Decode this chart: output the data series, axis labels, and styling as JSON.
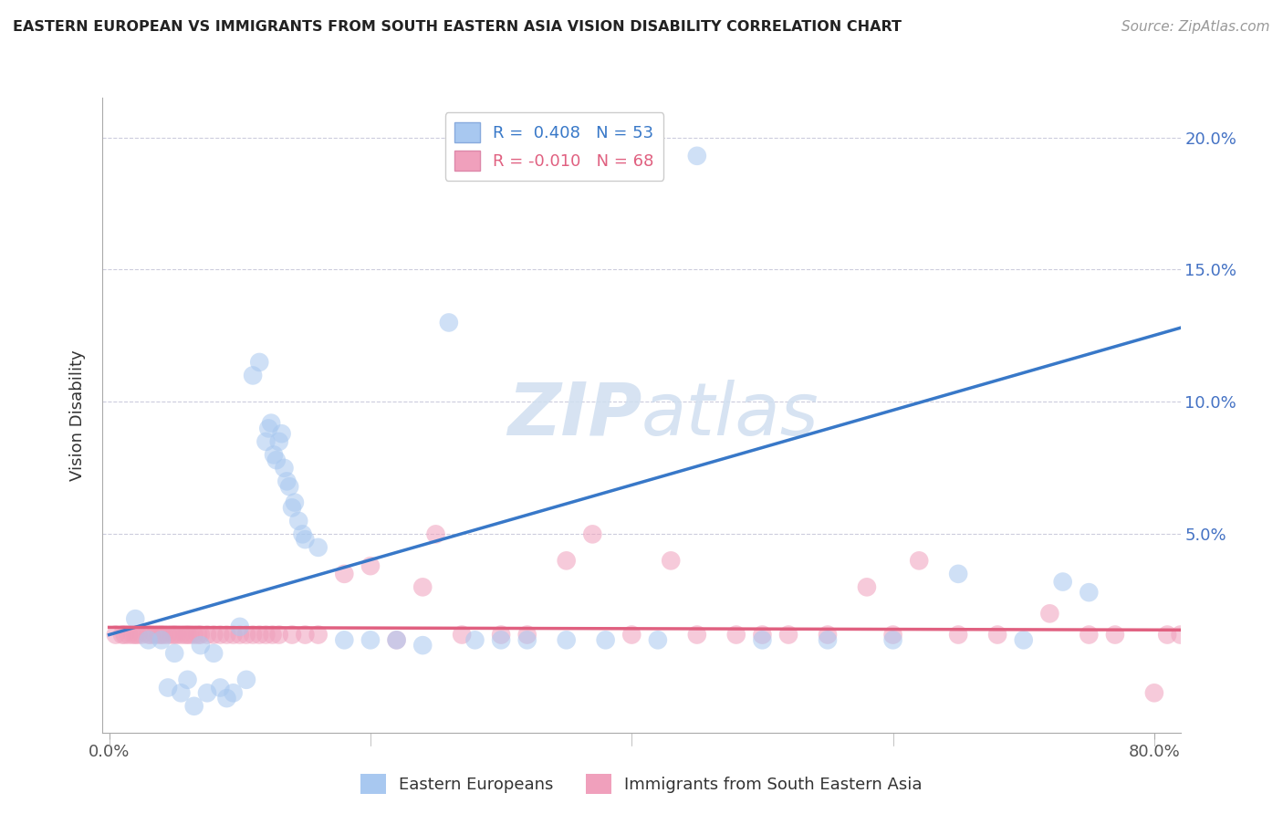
{
  "title": "EASTERN EUROPEAN VS IMMIGRANTS FROM SOUTH EASTERN ASIA VISION DISABILITY CORRELATION CHART",
  "source": "Source: ZipAtlas.com",
  "ylabel": "Vision Disability",
  "y_ticks": [
    0.0,
    0.05,
    0.1,
    0.15,
    0.2
  ],
  "y_tick_labels": [
    "",
    "5.0%",
    "10.0%",
    "15.0%",
    "20.0%"
  ],
  "xlim": [
    -0.005,
    0.82
  ],
  "ylim": [
    -0.025,
    0.215
  ],
  "legend_R1": "R =  0.408",
  "legend_N1": "N = 53",
  "legend_R2": "R = -0.010",
  "legend_N2": "N = 68",
  "blue_color": "#a8c8f0",
  "pink_color": "#f0a0bc",
  "blue_line_color": "#3878c8",
  "pink_line_color": "#e06080",
  "watermark_color": "#d0dff0",
  "blue_points_x": [
    0.02,
    0.03,
    0.04,
    0.045,
    0.05,
    0.055,
    0.06,
    0.065,
    0.07,
    0.075,
    0.08,
    0.085,
    0.09,
    0.095,
    0.1,
    0.105,
    0.11,
    0.115,
    0.12,
    0.122,
    0.124,
    0.126,
    0.128,
    0.13,
    0.132,
    0.134,
    0.136,
    0.138,
    0.14,
    0.142,
    0.145,
    0.148,
    0.15,
    0.16,
    0.18,
    0.2,
    0.22,
    0.24,
    0.26,
    0.28,
    0.3,
    0.32,
    0.35,
    0.38,
    0.42,
    0.45,
    0.5,
    0.55,
    0.6,
    0.65,
    0.7,
    0.73,
    0.75
  ],
  "blue_points_y": [
    0.018,
    0.01,
    0.01,
    -0.008,
    0.005,
    -0.01,
    -0.005,
    -0.015,
    0.008,
    -0.01,
    0.005,
    -0.008,
    -0.012,
    -0.01,
    0.015,
    -0.005,
    0.11,
    0.115,
    0.085,
    0.09,
    0.092,
    0.08,
    0.078,
    0.085,
    0.088,
    0.075,
    0.07,
    0.068,
    0.06,
    0.062,
    0.055,
    0.05,
    0.048,
    0.045,
    0.01,
    0.01,
    0.01,
    0.008,
    0.13,
    0.01,
    0.01,
    0.01,
    0.01,
    0.01,
    0.01,
    0.193,
    0.01,
    0.01,
    0.01,
    0.035,
    0.01,
    0.032,
    0.028
  ],
  "pink_points_x": [
    0.005,
    0.01,
    0.012,
    0.015,
    0.018,
    0.02,
    0.022,
    0.025,
    0.03,
    0.032,
    0.035,
    0.038,
    0.04,
    0.042,
    0.045,
    0.048,
    0.05,
    0.052,
    0.055,
    0.058,
    0.06,
    0.062,
    0.065,
    0.068,
    0.07,
    0.075,
    0.08,
    0.085,
    0.09,
    0.095,
    0.1,
    0.105,
    0.11,
    0.115,
    0.12,
    0.125,
    0.13,
    0.14,
    0.15,
    0.16,
    0.18,
    0.2,
    0.22,
    0.24,
    0.25,
    0.27,
    0.3,
    0.32,
    0.35,
    0.37,
    0.4,
    0.43,
    0.45,
    0.48,
    0.5,
    0.52,
    0.55,
    0.58,
    0.6,
    0.62,
    0.65,
    0.68,
    0.72,
    0.75,
    0.77,
    0.8,
    0.81,
    0.82
  ],
  "pink_points_y": [
    0.012,
    0.012,
    0.012,
    0.012,
    0.012,
    0.012,
    0.012,
    0.012,
    0.012,
    0.012,
    0.012,
    0.012,
    0.012,
    0.012,
    0.012,
    0.012,
    0.012,
    0.012,
    0.012,
    0.012,
    0.012,
    0.012,
    0.012,
    0.012,
    0.012,
    0.012,
    0.012,
    0.012,
    0.012,
    0.012,
    0.012,
    0.012,
    0.012,
    0.012,
    0.012,
    0.012,
    0.012,
    0.012,
    0.012,
    0.012,
    0.035,
    0.038,
    0.01,
    0.03,
    0.05,
    0.012,
    0.012,
    0.012,
    0.04,
    0.05,
    0.012,
    0.04,
    0.012,
    0.012,
    0.012,
    0.012,
    0.012,
    0.03,
    0.012,
    0.04,
    0.012,
    0.012,
    0.02,
    0.012,
    0.012,
    -0.01,
    0.012,
    0.012
  ],
  "blue_line_x": [
    0.0,
    0.82
  ],
  "blue_line_y_start": 0.012,
  "blue_line_y_end": 0.128,
  "pink_line_x": [
    0.0,
    0.82
  ],
  "pink_line_y_start": 0.0148,
  "pink_line_y_end": 0.0138
}
